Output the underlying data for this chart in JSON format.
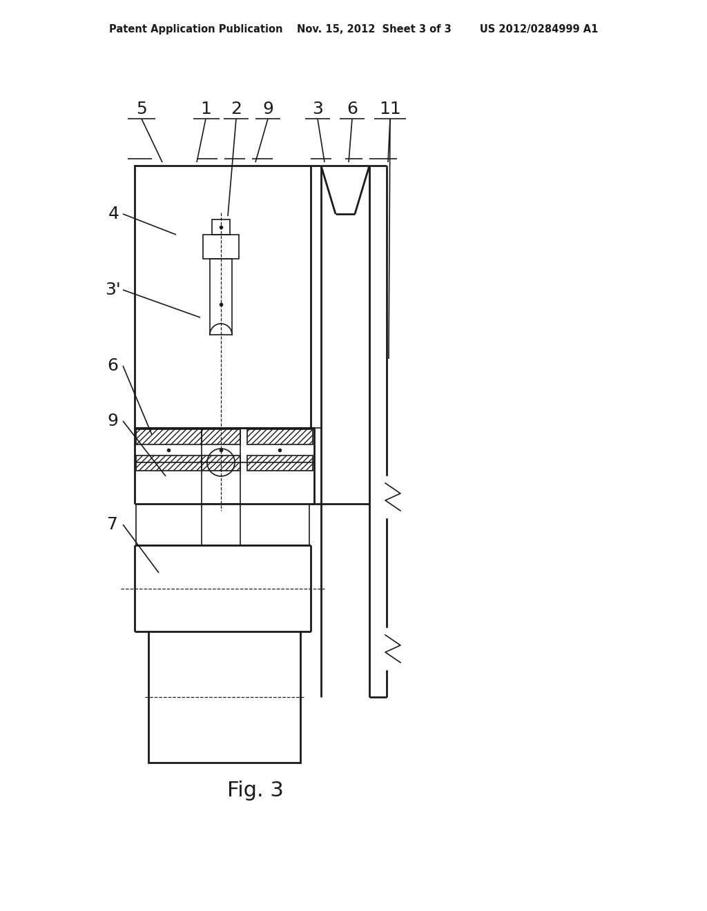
{
  "bg_color": "#ffffff",
  "lc": "#1a1a1a",
  "header": "Patent Application Publication    Nov. 15, 2012  Sheet 3 of 3        US 2012/0284999 A1",
  "fig_label": "Fig. 3"
}
